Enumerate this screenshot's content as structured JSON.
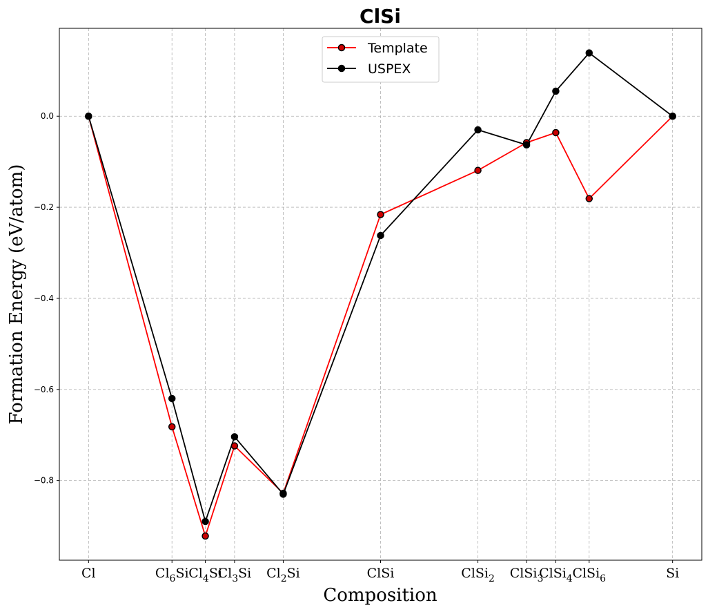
{
  "chart_data": {
    "type": "line",
    "title": "ClSi",
    "xlabel": "Composition",
    "ylabel": "Formation Energy (eV/atom)",
    "categories": [
      {
        "base": "Cl",
        "sub": "",
        "tail": ""
      },
      {
        "base": "Cl",
        "sub": "6",
        "tail": "Si"
      },
      {
        "base": "Cl",
        "sub": "4",
        "tail": "Si"
      },
      {
        "base": "Cl",
        "sub": "3",
        "tail": "Si"
      },
      {
        "base": "Cl",
        "sub": "2",
        "tail": "Si"
      },
      {
        "base": "ClSi",
        "sub": "",
        "tail": ""
      },
      {
        "base": "ClSi",
        "sub": "2",
        "tail": ""
      },
      {
        "base": "ClSi",
        "sub": "3",
        "tail": ""
      },
      {
        "base": "ClSi",
        "sub": "4",
        "tail": ""
      },
      {
        "base": "ClSi",
        "sub": "6",
        "tail": ""
      },
      {
        "base": "Si",
        "sub": "",
        "tail": ""
      }
    ],
    "x": [
      0.0,
      0.142857,
      0.2,
      0.25,
      0.333333,
      0.5,
      0.666667,
      0.75,
      0.8,
      0.857143,
      1.0
    ],
    "xlim": [
      -0.05,
      1.05
    ],
    "ylim": [
      -0.975,
      0.193
    ],
    "yticks": [
      0.0,
      -0.2,
      -0.4,
      -0.6,
      -0.8
    ],
    "ytick_labels": [
      "0.0",
      "−0.2",
      "−0.4",
      "−0.6",
      "−0.8"
    ],
    "grid": true,
    "legend_position": "top-center",
    "series": [
      {
        "name": "Template",
        "color": "#ff0000",
        "marker_face": "#cc0000",
        "values": [
          0.0,
          -0.682,
          -0.922,
          -0.724,
          -0.828,
          -0.216,
          -0.119,
          -0.058,
          -0.036,
          -0.181,
          0.0
        ]
      },
      {
        "name": "USPEX",
        "color": "#000000",
        "marker_face": "#000000",
        "values": [
          0.0,
          -0.62,
          -0.89,
          -0.704,
          -0.83,
          -0.262,
          -0.03,
          -0.063,
          0.055,
          0.139,
          0.0
        ]
      }
    ]
  }
}
